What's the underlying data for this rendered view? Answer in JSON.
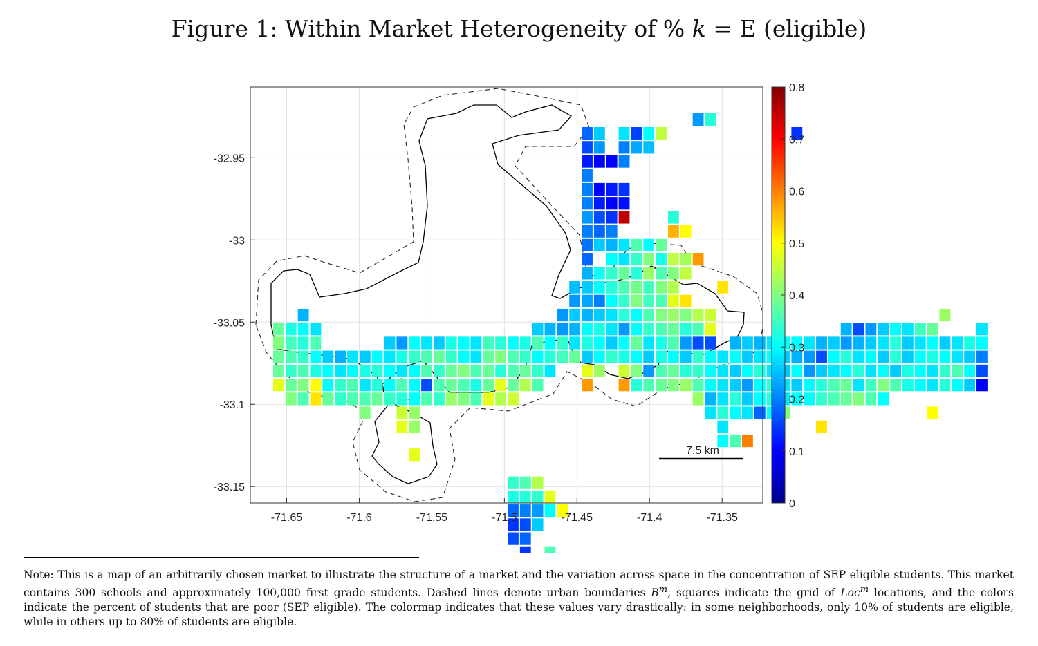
{
  "figure": {
    "title_prefix": "Figure 1: Within Market Heterogeneity of % ",
    "title_math": "k",
    "title_suffix": " = E (eligible)"
  },
  "chart_data": {
    "type": "heatmap",
    "title": "Figure 1: Within Market Heterogeneity of % k = E (eligible)",
    "xlabel": "",
    "ylabel": "",
    "xlim": [
      -71.675,
      -71.322
    ],
    "ylim": [
      -33.16,
      -32.907
    ],
    "x_ticks": [
      -71.65,
      -71.6,
      -71.55,
      -71.5,
      -71.45,
      -71.4,
      -71.35
    ],
    "x_tick_labels": [
      "-71.65",
      "-71.6",
      "-71.55",
      "-71.5",
      "-71.45",
      "-71.4",
      "-71.35"
    ],
    "y_ticks": [
      -32.95,
      -33.0,
      -33.05,
      -33.1,
      -33.15
    ],
    "y_tick_labels": [
      "-32.95",
      "-33",
      "-33.05",
      "-33.1",
      "-33.15"
    ],
    "grid": true,
    "colormap": "jet",
    "color_range": [
      0,
      0.8
    ],
    "colorbar_ticks": [
      0,
      0.1,
      0.2,
      0.3,
      0.4,
      0.5,
      0.6,
      0.7,
      0.8
    ],
    "colorbar_tick_labels": [
      "0",
      "0.1",
      "0.2",
      "0.3",
      "0.4",
      "0.5",
      "0.6",
      "0.7",
      "0.8"
    ],
    "scale_bar_label": "7.5 km",
    "cell_size_deg": 0.0085,
    "grid_origin": {
      "x": -71.6555,
      "y": -32.9267
    },
    "rows": [
      {
        "r": 0,
        "c0": 34,
        "v": [
          0.22,
          0.33
        ]
      },
      {
        "r": 1,
        "c0": 25,
        "v": [
          0.18,
          0.26,
          null,
          0.28,
          0.15,
          0.3,
          0.45,
          null,
          null,
          null,
          null,
          null,
          null,
          null,
          null,
          null,
          null,
          0.14
        ]
      },
      {
        "r": 2,
        "c0": 25,
        "v": [
          0.16,
          0.22,
          null,
          0.2,
          0.23,
          0.25
        ]
      },
      {
        "r": 3,
        "c0": 25,
        "v": [
          0.12,
          0.1,
          0.1,
          0.2
        ]
      },
      {
        "r": 4,
        "c0": 25,
        "v": [
          0.2
        ]
      },
      {
        "r": 5,
        "c0": 25,
        "v": [
          0.2,
          0.1,
          0.12,
          0.14
        ]
      },
      {
        "r": 6,
        "c0": 25,
        "v": [
          0.2,
          0.12,
          0.1,
          0.11
        ]
      },
      {
        "r": 7,
        "c0": 25,
        "v": [
          0.22,
          0.16,
          0.14,
          0.75,
          null,
          null,
          null,
          0.33
        ]
      },
      {
        "r": 8,
        "c0": 25,
        "v": [
          0.2,
          0.18,
          0.2,
          null,
          null,
          null,
          null,
          0.56,
          0.5
        ]
      },
      {
        "r": 9,
        "c0": 25,
        "v": [
          0.19,
          0.26,
          0.24,
          0.28,
          0.36,
          0.3,
          0.38
        ]
      },
      {
        "r": 10,
        "c0": 25,
        "v": [
          0.18,
          null,
          0.3,
          0.28,
          0.34,
          0.4,
          0.32,
          0.45,
          0.43,
          0.58
        ]
      },
      {
        "r": 11,
        "c0": 25,
        "v": [
          0.24,
          0.31,
          0.34,
          0.38,
          0.33,
          0.42,
          0.36,
          0.4,
          0.45
        ]
      },
      {
        "r": 12,
        "c0": 24,
        "v": [
          0.25,
          0.26,
          0.3,
          0.33,
          0.36,
          0.39,
          0.35,
          0.4,
          0.44,
          null,
          null,
          null,
          0.52
        ]
      },
      {
        "r": 13,
        "c0": 24,
        "v": [
          0.22,
          0.23,
          0.2,
          0.3,
          0.34,
          0.4,
          0.35,
          0.36,
          0.48,
          0.52
        ]
      },
      {
        "r": 14,
        "c0": 2,
        "v": [
          0.24,
          null,
          null,
          null,
          null,
          null,
          null,
          null,
          null,
          null,
          null,
          null,
          null,
          null,
          null,
          null,
          null,
          null,
          null,
          null,
          null,
          0.22,
          0.26,
          0.24,
          0.26,
          0.28,
          0.33,
          0.3,
          0.36,
          0.4,
          0.42,
          0.4,
          0.44,
          0.46,
          null,
          null,
          null,
          null,
          null,
          null,
          null,
          null,
          null,
          null,
          null,
          null,
          null,
          null,
          null,
          null,
          null,
          null,
          0.42
        ]
      },
      {
        "r": 15,
        "c0": 0,
        "v": [
          0.38,
          0.32,
          0.3,
          0.28,
          null,
          null,
          null,
          null,
          null,
          null,
          null,
          null,
          null,
          null,
          null,
          null,
          null,
          null,
          null,
          null,
          null,
          0.26,
          0.24,
          0.22,
          0.24,
          0.3,
          0.32,
          0.28,
          0.22,
          0.3,
          0.34,
          0.36,
          0.38,
          0.33,
          0.36,
          0.48,
          null,
          null,
          null,
          null,
          null,
          null,
          null,
          null,
          null,
          null,
          0.24,
          0.16,
          0.22,
          0.26,
          0.3,
          0.28,
          0.35,
          0.38,
          null,
          null,
          null,
          0.28
        ]
      },
      {
        "r": 16,
        "c0": 0,
        "v": [
          0.4,
          0.35,
          0.33,
          0.36,
          null,
          null,
          null,
          null,
          null,
          0.26,
          0.22,
          0.3,
          0.28,
          0.26,
          0.32,
          0.3,
          0.28,
          0.35,
          0.33,
          0.3,
          0.32,
          0.36,
          0.3,
          0.34,
          0.28,
          0.32,
          0.3,
          0.26,
          0.3,
          0.38,
          0.28,
          0.32,
          0.36,
          0.22,
          0.16,
          0.16,
          null,
          0.24,
          0.26,
          0.24,
          0.28,
          0.3,
          0.3,
          0.28,
          0.24,
          0.26,
          0.22,
          0.24,
          0.26,
          0.28,
          0.33,
          0.26,
          0.28,
          0.3,
          0.26,
          0.28,
          0.32,
          0.3
        ]
      },
      {
        "r": 17,
        "c0": 0,
        "v": [
          0.38,
          0.36,
          0.34,
          0.3,
          0.26,
          0.24,
          0.28,
          0.26,
          0.3,
          0.28,
          0.32,
          0.34,
          0.36,
          0.38,
          0.34,
          0.3,
          0.28,
          0.38,
          0.4,
          0.36,
          0.34,
          0.3,
          0.33,
          0.35,
          0.38,
          0.26,
          0.3,
          0.34,
          0.32,
          0.3,
          0.26,
          0.32,
          0.3,
          0.26,
          0.34,
          0.3,
          0.28,
          0.3,
          0.26,
          0.28,
          0.3,
          0.26,
          0.24,
          0.22,
          0.16,
          0.3,
          0.33,
          0.28,
          0.3,
          0.26,
          0.33,
          0.26,
          0.3,
          0.32,
          0.3,
          0.28,
          0.26,
          0.2
        ]
      },
      {
        "r": 18,
        "c0": 0,
        "v": [
          0.38,
          0.34,
          0.36,
          0.32,
          0.3,
          0.28,
          0.3,
          0.32,
          0.33,
          0.3,
          0.28,
          0.3,
          0.36,
          0.34,
          0.38,
          0.4,
          0.36,
          0.38,
          0.33,
          0.36,
          0.38,
          0.34,
          0.28,
          null,
          null,
          0.48,
          0.42,
          null,
          0.46,
          0.4,
          0.22,
          0.36,
          0.38,
          0.33,
          0.34,
          0.3,
          0.28,
          0.26,
          0.3,
          0.33,
          0.28,
          0.26,
          0.3,
          0.22,
          0.26,
          0.28,
          0.3,
          0.33,
          0.28,
          0.3,
          0.26,
          0.32,
          0.3,
          0.28,
          0.34,
          0.36,
          0.3,
          0.16
        ]
      },
      {
        "r": 19,
        "c0": 0,
        "v": [
          0.48,
          0.38,
          0.4,
          0.5,
          0.3,
          0.34,
          0.36,
          0.28,
          0.33,
          0.3,
          0.36,
          0.3,
          0.16,
          0.36,
          0.38,
          0.36,
          0.32,
          0.38,
          0.48,
          0.38,
          0.44,
          0.36,
          null,
          null,
          null,
          0.58,
          null,
          null,
          0.58,
          0.33,
          0.36,
          0.38,
          0.4,
          0.42,
          0.36,
          0.3,
          0.28,
          0.26,
          0.22,
          0.3,
          0.33,
          0.28,
          0.26,
          0.3,
          0.33,
          0.36,
          0.38,
          0.28,
          0.35,
          0.4,
          0.36,
          0.32,
          0.3,
          0.28,
          0.33,
          0.3,
          0.26,
          0.1
        ]
      },
      {
        "r": 20,
        "c0": 1,
        "v": [
          0.4,
          0.36,
          0.52,
          0.38,
          0.34,
          0.36,
          0.36,
          0.38,
          0.34,
          0.33,
          0.3,
          0.36,
          0.34,
          0.42,
          0.4,
          0.36,
          0.48,
          0.44,
          0.46,
          null,
          null,
          null,
          null,
          null,
          null,
          null,
          null,
          null,
          null,
          null,
          null,
          null,
          null,
          0.42,
          0.24,
          0.28,
          0.33,
          0.26,
          0.3,
          0.33,
          0.28,
          0.3,
          0.3,
          0.34,
          0.36,
          0.38,
          0.4,
          0.36,
          0.3
        ]
      },
      {
        "r": 21,
        "c0": 7,
        "v": [
          0.4,
          null,
          null,
          0.46,
          0.42,
          null,
          null,
          null,
          null,
          null,
          null,
          null,
          null,
          null,
          null,
          null,
          null,
          null,
          null,
          null,
          null,
          null,
          null,
          null,
          null,
          null,
          null,
          null,
          0.28,
          0.33,
          0.3,
          0.28,
          0.18,
          0.3,
          0.4,
          null,
          null,
          null,
          null,
          null,
          null,
          null,
          null,
          null,
          null,
          null,
          0.5
        ]
      },
      {
        "r": 22,
        "c0": 10,
        "v": [
          0.48,
          0.42,
          null,
          null,
          null,
          null,
          null,
          null,
          null,
          null,
          null,
          null,
          null,
          null,
          null,
          null,
          null,
          null,
          null,
          null,
          null,
          null,
          null,
          null,
          null,
          null,
          0.28,
          null,
          null,
          null,
          null,
          null,
          null,
          null,
          0.52
        ]
      },
      {
        "r": 23,
        "c0": 36,
        "v": [
          0.3,
          0.36,
          0.6
        ]
      },
      {
        "r": 24,
        "c0": 11,
        "v": [
          0.48
        ]
      },
      {
        "r": 26,
        "c0": 19,
        "v": [
          0.34,
          0.36,
          0.44
        ]
      },
      {
        "r": 27,
        "c0": 19,
        "v": [
          0.32,
          0.33,
          0.34,
          0.48
        ]
      },
      {
        "r": 28,
        "c0": 19,
        "v": [
          0.18,
          0.2,
          0.22,
          0.3,
          0.5
        ]
      },
      {
        "r": 29,
        "c0": 19,
        "v": [
          0.14,
          0.16,
          0.26
        ]
      },
      {
        "r": 30,
        "c0": 19,
        "v": [
          0.16,
          0.18
        ]
      },
      {
        "r": 31,
        "c0": 20,
        "v": [
          0.14,
          null,
          0.36
        ]
      }
    ]
  },
  "note": {
    "part1": "Note: This is a map of an arbitrarily chosen market to illustrate the structure of a market and the variation across space in the concentration of SEP eligible students. This market contains 300 schools and approximately 100,000 first grade students. Dashed lines denote urban boundaries ",
    "sym1_base": "B",
    "sym1_sup": "m",
    "part2": ", squares indicate the grid of ",
    "sym2_base": "Loc",
    "sym2_sup": "m",
    "part3": " locations, and the colors indicate the percent of students that are poor (SEP eligible). The colormap indicates that these values vary drastically: in some neighborhoods, only 10% of students are eligible, while in others up to 80% of students are eligible."
  }
}
